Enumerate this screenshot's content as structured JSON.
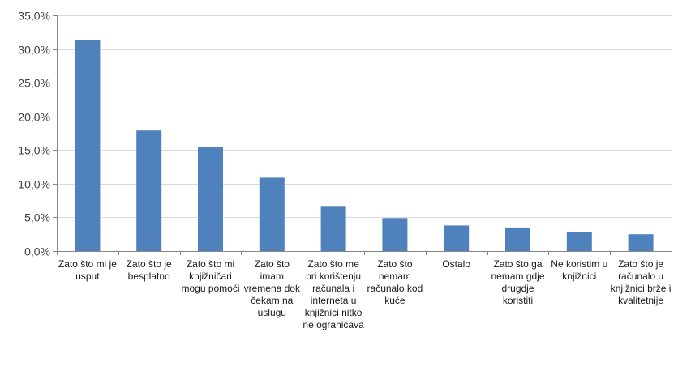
{
  "chart_data": {
    "type": "bar",
    "categories": [
      "Zato što mi je usput",
      "Zato što je besplatno",
      "Zato što mi knjižničari mogu pomoći",
      "Zato što imam vremena dok čekam na uslugu",
      "Zato što me pri korištenju računala i interneta u knjižnici nitko ne ograničava",
      "Zato što nemam računalo kod kuće",
      "Ostalo",
      "Zato što ga nemam gdje drugdje koristiti",
      "Ne koristim u knjižnici",
      "Zato što je računalo u knjižnici brže i kvalitetnije"
    ],
    "values": [
      31.3,
      17.9,
      15.4,
      10.9,
      6.7,
      4.9,
      3.8,
      3.5,
      2.8,
      2.5
    ],
    "ylim": [
      0,
      35
    ],
    "ytick_labels": [
      "0,0%",
      "5,0%",
      "10,0%",
      "15,0%",
      "20,0%",
      "25,0%",
      "30,0%",
      "35,0%"
    ],
    "grid": true,
    "legend": "none",
    "bar_color": "#4f81bd",
    "grid_color": "#d9d9d9"
  }
}
